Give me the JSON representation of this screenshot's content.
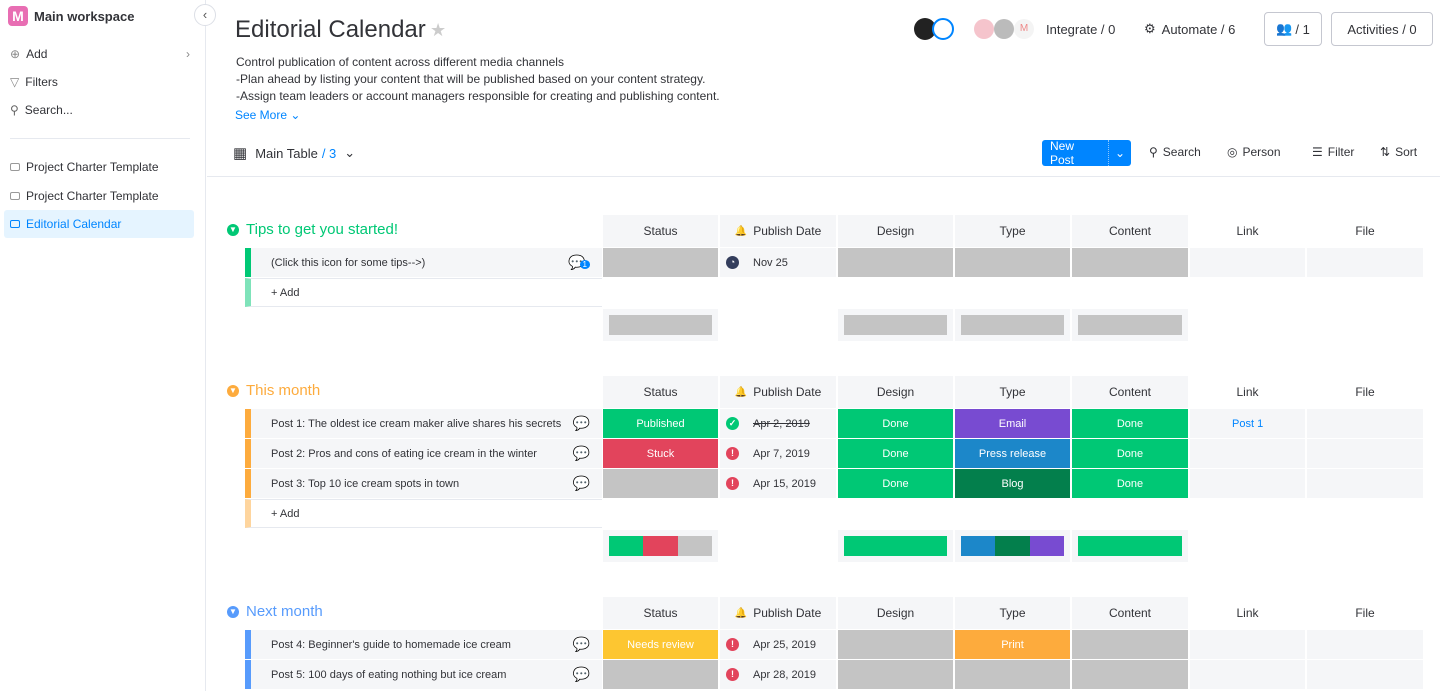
{
  "sidebar": {
    "workspace": "Main workspace",
    "logo_letter": "M",
    "add": "Add",
    "filters": "Filters",
    "search": "Search...",
    "boards": [
      {
        "label": "Project Charter Template"
      },
      {
        "label": "Project Charter Template"
      },
      {
        "label": "Editorial Calendar",
        "active": true
      }
    ]
  },
  "header": {
    "title": "Editorial Calendar",
    "description": [
      "Control publication of content across different media channels",
      "-Plan ahead by listing your content that will be published based on your content strategy.",
      "-Assign team leaders or account managers responsible for creating and publishing content."
    ],
    "see_more": "See More",
    "integrate": "Integrate / 0",
    "automate": "Automate / 6",
    "members": "/ 1",
    "activities": "Activities / 0"
  },
  "toolbar": {
    "view": "Main Table",
    "view_count": "/ 3",
    "new_post": "New Post",
    "search": "Search",
    "person": "Person",
    "filter": "Filter",
    "sort": "Sort"
  },
  "columns": [
    "Status",
    "Publish Date",
    "Design",
    "Type",
    "Content",
    "Link",
    "File"
  ],
  "colors": {
    "done": "#00c875",
    "stuck": "#e2445c",
    "empty": "#c4c4c4",
    "email": "#784bd1",
    "press": "#1c87c9",
    "blog": "#037f4c",
    "review": "#fdc631",
    "print": "#fdab3d",
    "link": "#0085ff"
  },
  "groups": [
    {
      "title": "Tips to get you started!",
      "color": "#00c875",
      "icon": "▼",
      "add": "+ Add",
      "rows": [
        {
          "name": "(Click this icon for some tips-->)",
          "status": "",
          "status_color": "#c4c4c4",
          "date": "Nov 25",
          "date_icon": "clock",
          "design": "",
          "design_color": "#c4c4c4",
          "type": "",
          "type_color": "#c4c4c4",
          "content": "",
          "content_color": "#c4c4c4",
          "link": "",
          "updates": "1"
        }
      ],
      "summary": {
        "status": [
          [
            "#c4c4c4",
            1
          ]
        ],
        "design": [
          [
            "#c4c4c4",
            1
          ]
        ],
        "type": [
          [
            "#c4c4c4",
            1
          ]
        ],
        "content": [
          [
            "#c4c4c4",
            1
          ]
        ]
      }
    },
    {
      "title": "This month",
      "color": "#fdab3d",
      "icon": "▼",
      "add": "+ Add",
      "rows": [
        {
          "name": "Post 1: The oldest ice cream maker alive shares his secrets",
          "status": "Published",
          "status_color": "#00c875",
          "date": "Apr 2, 2019",
          "date_icon": "check",
          "date_strike": true,
          "design": "Done",
          "design_color": "#00c875",
          "type": "Email",
          "type_color": "#784bd1",
          "content": "Done",
          "content_color": "#00c875",
          "link": "Post 1"
        },
        {
          "name": "Post 2: Pros and cons of eating ice cream in the winter",
          "status": "Stuck",
          "status_color": "#e2445c",
          "date": "Apr 7, 2019",
          "date_icon": "alert",
          "design": "Done",
          "design_color": "#00c875",
          "type": "Press release",
          "type_color": "#1c87c9",
          "content": "Done",
          "content_color": "#00c875",
          "link": ""
        },
        {
          "name": "Post 3: Top 10 ice cream spots in town",
          "status": "",
          "status_color": "#c4c4c4",
          "date": "Apr 15, 2019",
          "date_icon": "alert",
          "design": "Done",
          "design_color": "#00c875",
          "type": "Blog",
          "type_color": "#037f4c",
          "content": "Done",
          "content_color": "#00c875",
          "link": ""
        }
      ],
      "summary": {
        "status": [
          [
            "#00c875",
            1
          ],
          [
            "#e2445c",
            1
          ],
          [
            "#c4c4c4",
            1
          ]
        ],
        "design": [
          [
            "#00c875",
            3
          ]
        ],
        "type": [
          [
            "#1c87c9",
            1
          ],
          [
            "#037f4c",
            1
          ],
          [
            "#784bd1",
            1
          ]
        ],
        "content": [
          [
            "#00c875",
            3
          ]
        ]
      }
    },
    {
      "title": "Next month",
      "color": "#579bfc",
      "icon": "▼",
      "add": "",
      "rows": [
        {
          "name": "Post 4: Beginner's guide to homemade ice cream",
          "status": "Needs review",
          "status_color": "#fdc631",
          "date": "Apr 25, 2019",
          "date_icon": "alert",
          "design": "",
          "design_color": "#c4c4c4",
          "type": "Print",
          "type_color": "#fdab3d",
          "content": "",
          "content_color": "#c4c4c4",
          "link": ""
        },
        {
          "name": "Post 5: 100 days of eating nothing but ice cream",
          "status": "",
          "status_color": "#c4c4c4",
          "date": "Apr 28, 2019",
          "date_icon": "alert",
          "design": "",
          "design_color": "#c4c4c4",
          "type": "",
          "type_color": "#c4c4c4",
          "content": "",
          "content_color": "#c4c4c4",
          "link": ""
        }
      ]
    }
  ]
}
